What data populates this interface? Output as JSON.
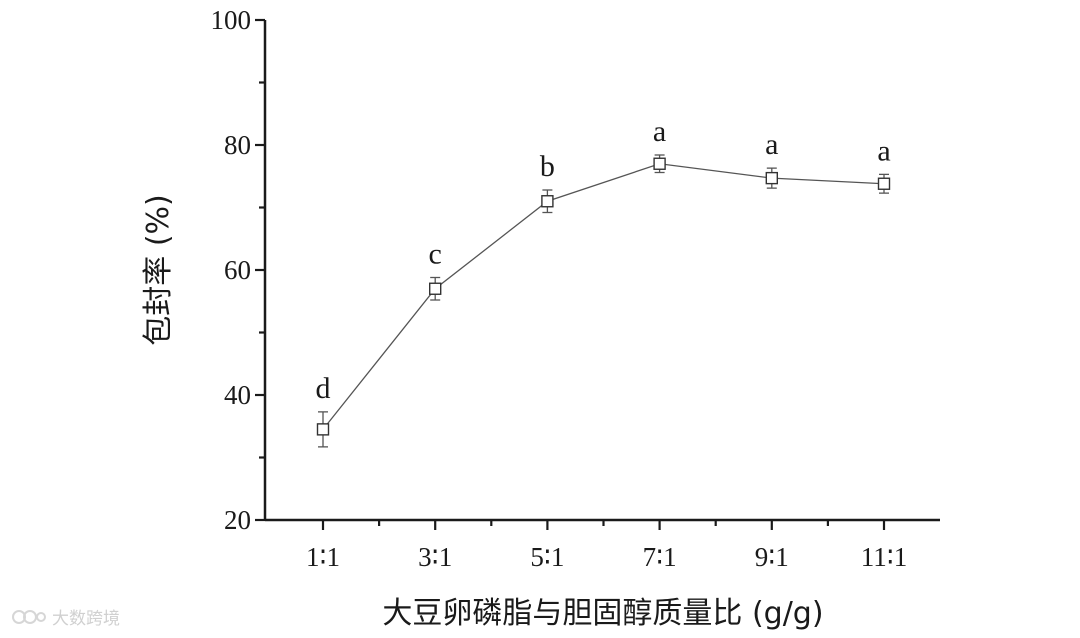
{
  "chart_data": {
    "type": "line",
    "title": "",
    "xlabel": "大豆卵磷脂与胆固醇质量比 (g/g)",
    "ylabel": "包封率 (%)",
    "categories": [
      "1∶1",
      "3∶1",
      "5∶1",
      "7∶1",
      "9∶1",
      "11∶1"
    ],
    "ylim": [
      20,
      100
    ],
    "yticks": [
      20,
      40,
      60,
      80,
      100
    ],
    "series": [
      {
        "values": [
          34.5,
          57.0,
          71.0,
          77.0,
          74.7,
          73.8
        ],
        "errors": [
          2.8,
          1.8,
          1.8,
          1.4,
          1.6,
          1.5
        ],
        "labels": [
          "d",
          "c",
          "b",
          "a",
          "a",
          "a"
        ],
        "marker": "open-square",
        "color": "#555555"
      }
    ],
    "grid": false,
    "legend": "none"
  },
  "watermark": {
    "text": "大数跨境"
  }
}
